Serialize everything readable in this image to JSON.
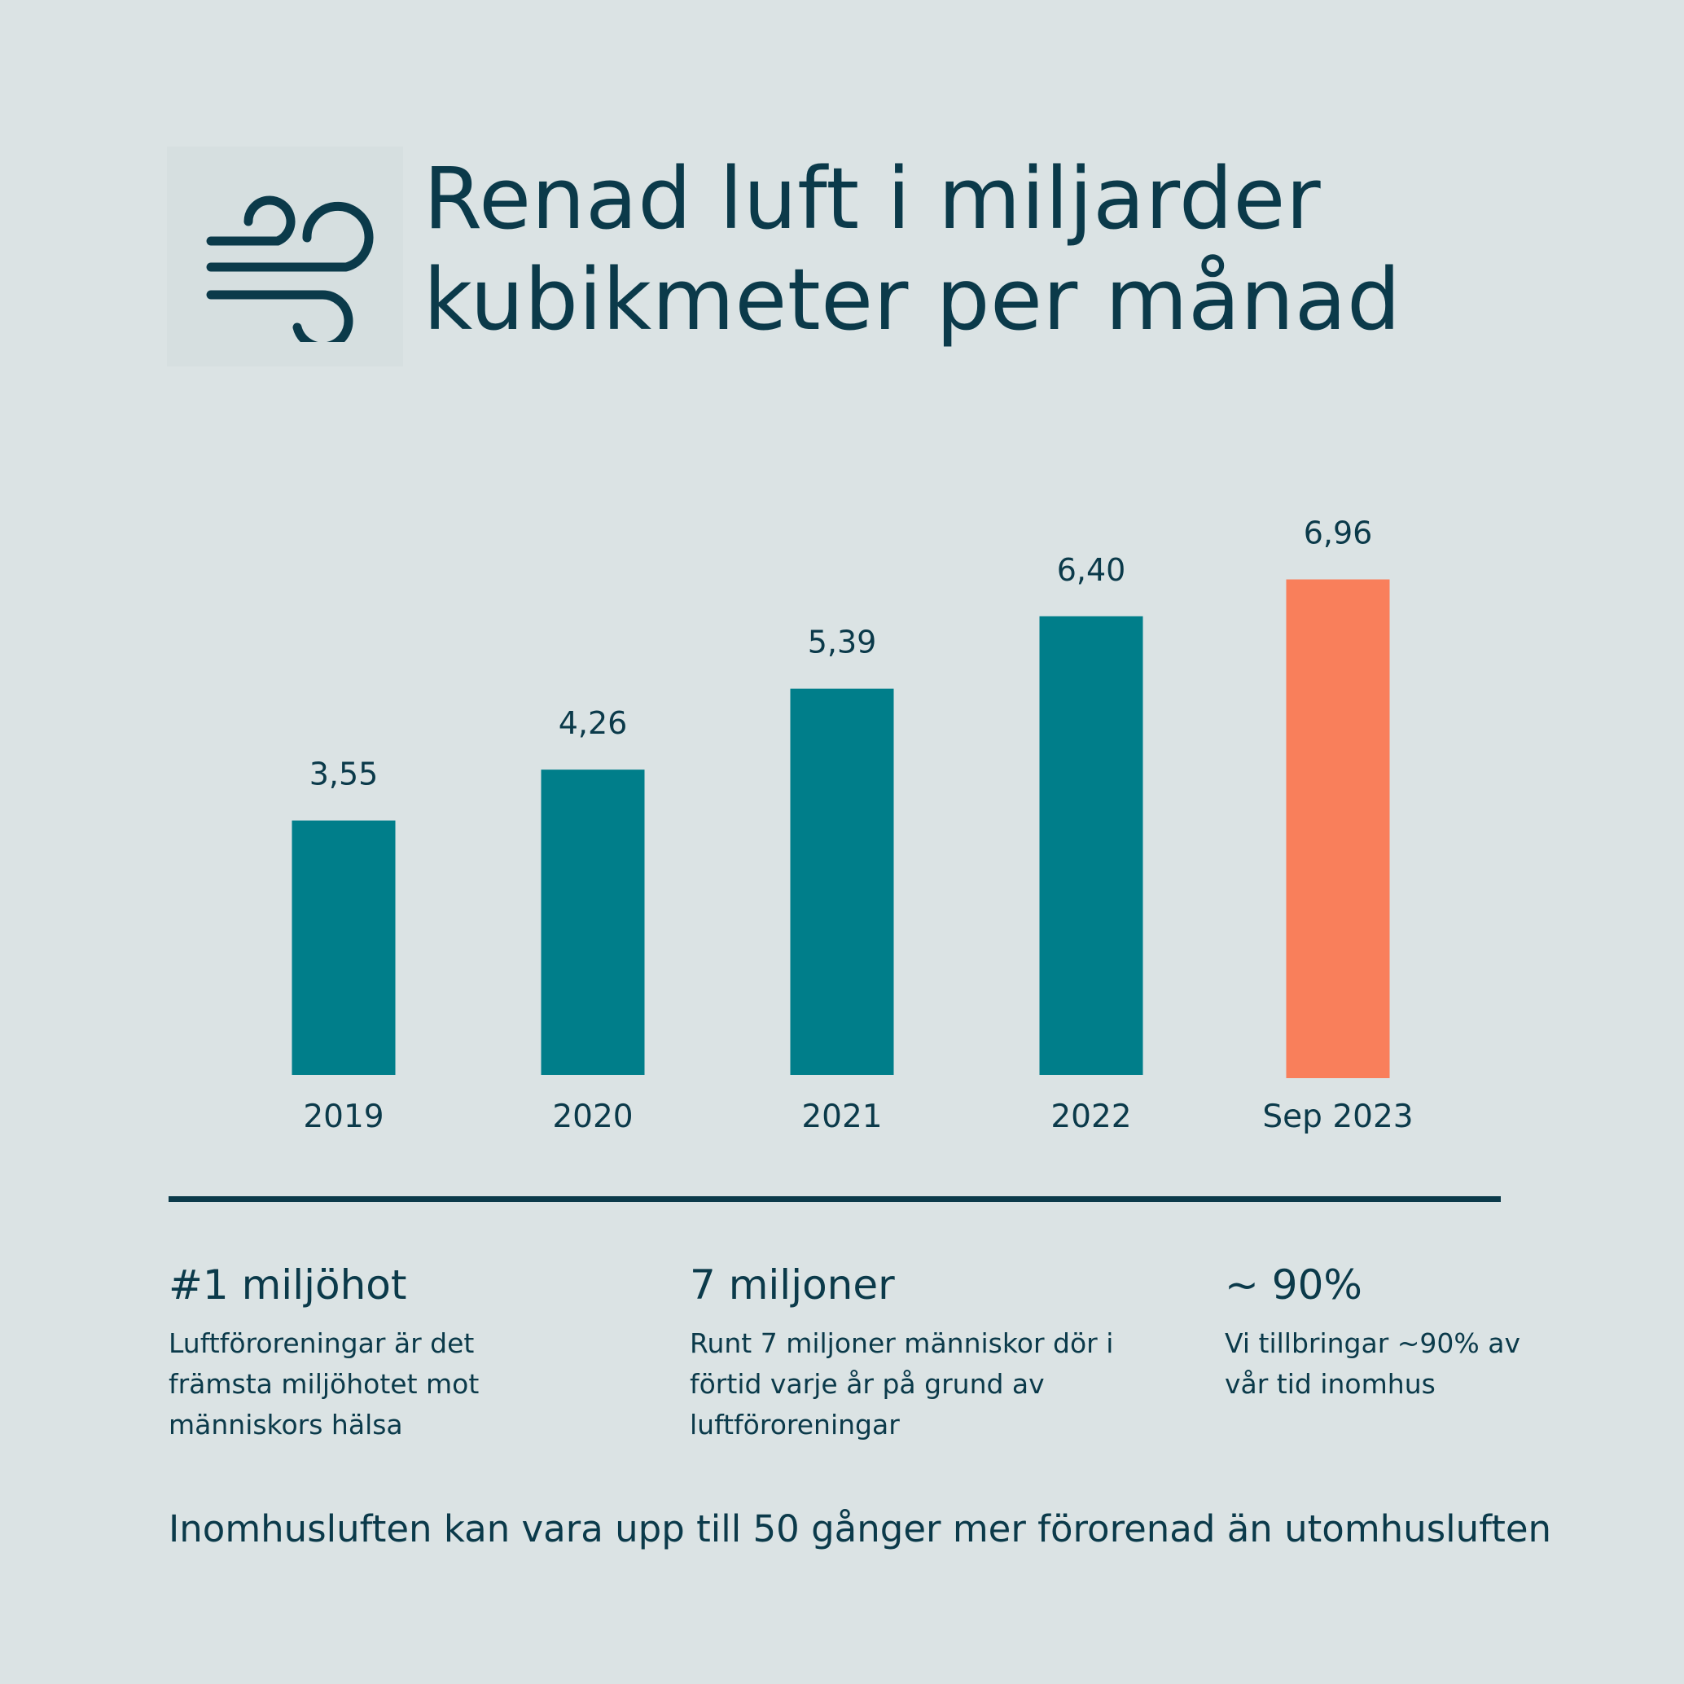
{
  "header": {
    "title_line1": "Renad luft i miljarder",
    "title_line2": "kubikmeter per månad",
    "icon": "wind-icon"
  },
  "chart_data": {
    "type": "bar",
    "categories": [
      "2019",
      "2020",
      "2021",
      "2022",
      "Sep 2023"
    ],
    "values": [
      3.55,
      4.26,
      5.39,
      6.4,
      6.96
    ],
    "value_labels": [
      "3,55",
      "4,26",
      "5,39",
      "6,40",
      "6,96"
    ],
    "title": "Renad luft i miljarder kubikmeter per månad",
    "xlabel": "",
    "ylabel": "",
    "ylim": [
      0,
      7
    ],
    "grid": false,
    "colors": {
      "default": "#007e8a",
      "highlight": "#f97f5b",
      "highlight_index": 4
    }
  },
  "stats": [
    {
      "headline": "#1 miljöhot",
      "lines": [
        "Luftföroreningar är det",
        "främsta miljöhotet mot",
        "människors hälsa"
      ]
    },
    {
      "headline": "7 miljoner",
      "lines": [
        "Runt 7 miljoner människor dör i",
        "förtid varje år på grund av",
        "luftföroreningar"
      ]
    },
    {
      "headline": "~ 90%",
      "lines": [
        "Vi tillbringar ~90% av",
        "vår tid inomhus"
      ]
    }
  ],
  "footnote": "Inomhusluften kan vara upp till 50 gånger mer förorenad än utomhusluften",
  "colors": {
    "background": "#dbe3e4",
    "text": "#0b3a4a",
    "bar": "#007e8a",
    "bar_highlight": "#f97f5b"
  }
}
